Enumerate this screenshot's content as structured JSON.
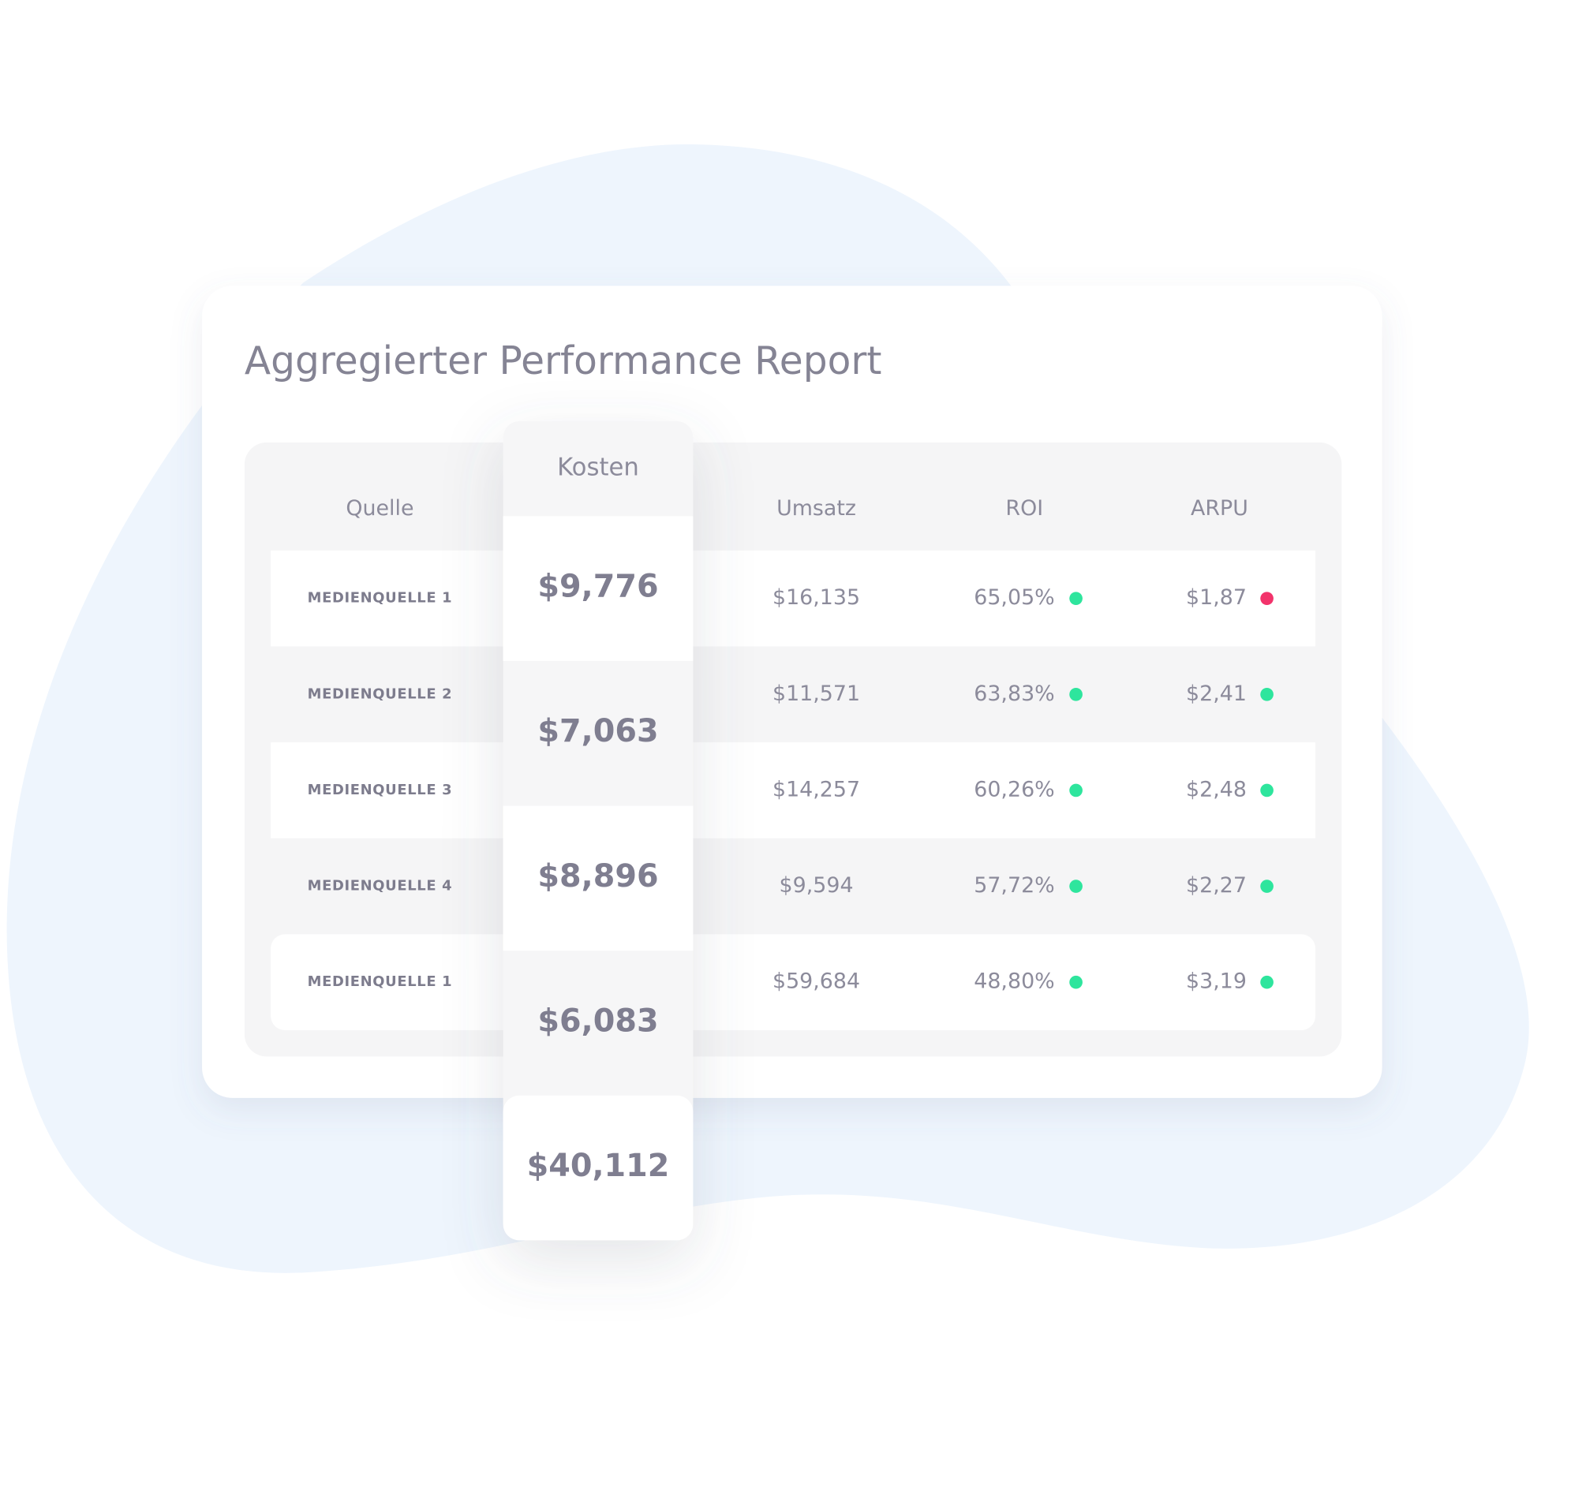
{
  "title": "Aggregierter Performance Report",
  "table": {
    "headers": [
      "Quelle",
      "Kosten",
      "Umsatz",
      "ROI",
      "ARPU"
    ],
    "rows": [
      {
        "source": "MEDIENQUELLE 1",
        "revenue": "$16,135",
        "roi": "65,05%",
        "roi_dot": "#2ee59d",
        "arpu": "$1,87",
        "arpu_dot": "#f2336b"
      },
      {
        "source": "MEDIENQUELLE 2",
        "revenue": "$11,571",
        "roi": "63,83%",
        "roi_dot": "#2ee59d",
        "arpu": "$2,41",
        "arpu_dot": "#2ee59d"
      },
      {
        "source": "MEDIENQUELLE 3",
        "revenue": "$14,257",
        "roi": "60,26%",
        "roi_dot": "#2ee59d",
        "arpu": "$2,48",
        "arpu_dot": "#2ee59d"
      },
      {
        "source": "MEDIENQUELLE 4",
        "revenue": "$9,594",
        "roi": "57,72%",
        "roi_dot": "#2ee59d",
        "arpu": "$2,27",
        "arpu_dot": "#2ee59d"
      },
      {
        "source": "MEDIENQUELLE 1",
        "revenue": "$59,684",
        "roi": "48,80%",
        "roi_dot": "#2ee59d",
        "arpu": "$3,19",
        "arpu_dot": "#2ee59d"
      }
    ],
    "costs": [
      "$9,776",
      "$7,063",
      "$8,896",
      "$6,083",
      "$40,112"
    ]
  }
}
